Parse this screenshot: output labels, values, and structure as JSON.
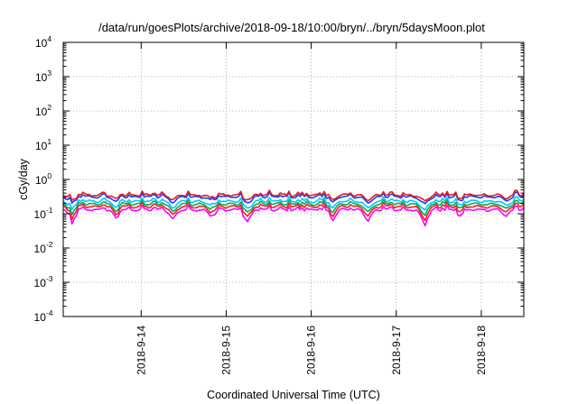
{
  "chart_data": {
    "type": "line",
    "title": "/data/run/goesPlots/archive/2018-09-18/10:00/bryn/../bryn/5daysMoon.plot",
    "xlabel": "Coordinated Universal Time (UTC)",
    "ylabel": "cGy/day",
    "yscale": "log",
    "ylim": [
      0.0001,
      10000
    ],
    "xlim": [
      "2018-09-13 02:00",
      "2018-09-18 12:00"
    ],
    "y_ticks": [
      {
        "base": "10",
        "exp": "-4"
      },
      {
        "base": "10",
        "exp": "-3"
      },
      {
        "base": "10",
        "exp": "-2"
      },
      {
        "base": "10",
        "exp": "-1"
      },
      {
        "base": "10",
        "exp": "0"
      },
      {
        "base": "10",
        "exp": "1"
      },
      {
        "base": "10",
        "exp": "2"
      },
      {
        "base": "10",
        "exp": "3"
      },
      {
        "base": "10",
        "exp": "4"
      }
    ],
    "x_ticks": [
      "2018-9-14",
      "2018-9-15",
      "2018-9-16",
      "2018-9-17",
      "2018-9-18"
    ],
    "grid": true,
    "dips": [
      {
        "date": "2018-09-13 04:30",
        "depth": 0.62
      },
      {
        "date": "2018-09-13 17:00",
        "depth": 0.45
      },
      {
        "date": "2018-09-14 09:00",
        "depth": 0.5
      },
      {
        "date": "2018-09-14 20:00",
        "depth": 0.4
      },
      {
        "date": "2018-09-15 06:00",
        "depth": 0.62
      },
      {
        "date": "2018-09-16 06:00",
        "depth": 0.5
      },
      {
        "date": "2018-09-16 16:00",
        "depth": 0.55
      },
      {
        "date": "2018-09-17 08:00",
        "depth": 0.7
      },
      {
        "date": "2018-09-17 18:00",
        "depth": 0.35
      },
      {
        "date": "2018-09-18 07:00",
        "depth": 0.35
      }
    ],
    "series": [
      {
        "color": "#ff00ff",
        "level": 0.13,
        "spike": 0.1
      },
      {
        "color": "#ff1a1a",
        "level": 0.16,
        "spike": 0.12
      },
      {
        "color": "#00b050",
        "level": 0.19,
        "spike": 0.14
      },
      {
        "color": "#00c8ff",
        "level": 0.23,
        "spike": 0.18
      },
      {
        "color": "#1e3cff",
        "level": 0.31,
        "spike": 0.24
      },
      {
        "color": "#e0201a",
        "level": 0.35,
        "spike": 0.28
      }
    ]
  }
}
